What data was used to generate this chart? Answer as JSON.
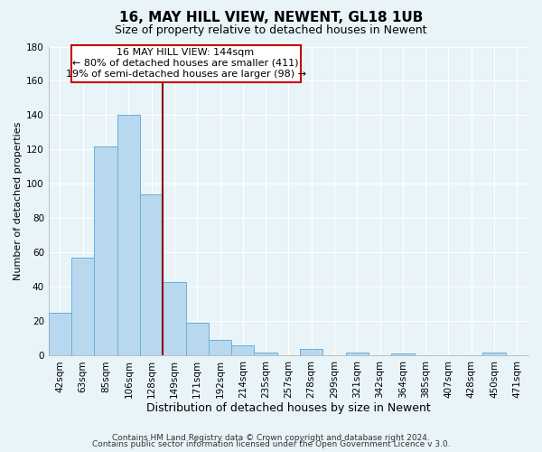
{
  "title": "16, MAY HILL VIEW, NEWENT, GL18 1UB",
  "subtitle": "Size of property relative to detached houses in Newent",
  "xlabel": "Distribution of detached houses by size in Newent",
  "ylabel": "Number of detached properties",
  "categories": [
    "42sqm",
    "63sqm",
    "85sqm",
    "106sqm",
    "128sqm",
    "149sqm",
    "171sqm",
    "192sqm",
    "214sqm",
    "235sqm",
    "257sqm",
    "278sqm",
    "299sqm",
    "321sqm",
    "342sqm",
    "364sqm",
    "385sqm",
    "407sqm",
    "428sqm",
    "450sqm",
    "471sqm"
  ],
  "values": [
    25,
    57,
    122,
    140,
    94,
    43,
    19,
    9,
    6,
    2,
    0,
    4,
    0,
    2,
    0,
    1,
    0,
    0,
    0,
    2,
    0
  ],
  "bar_color": "#b8d8f0",
  "bar_edge_color": "#6aaed6",
  "bar_linewidth": 0.7,
  "reference_line_color": "#8b0000",
  "annotation_title": "16 MAY HILL VIEW: 144sqm",
  "annotation_line1": "← 80% of detached houses are smaller (411)",
  "annotation_line2": "19% of semi-detached houses are larger (98) →",
  "ylim": [
    0,
    180
  ],
  "yticks": [
    0,
    20,
    40,
    60,
    80,
    100,
    120,
    140,
    160,
    180
  ],
  "footer1": "Contains HM Land Registry data © Crown copyright and database right 2024.",
  "footer2": "Contains public sector information licensed under the Open Government Licence v 3.0.",
  "background_color": "#e8f4f8",
  "grid_color": "#ffffff",
  "title_fontsize": 11,
  "subtitle_fontsize": 9,
  "xlabel_fontsize": 9,
  "ylabel_fontsize": 8,
  "tick_fontsize": 7.5,
  "annotation_fontsize": 8,
  "footer_fontsize": 6.5
}
